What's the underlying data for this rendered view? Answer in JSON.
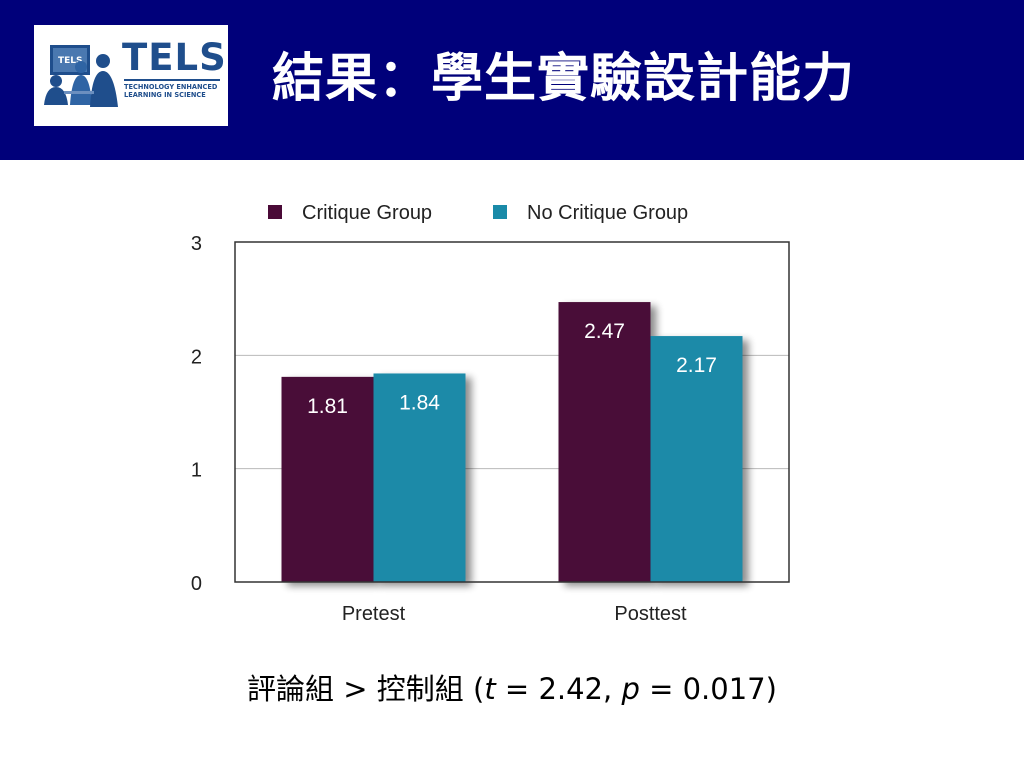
{
  "slide": {
    "title": "結果：學生實驗設計能力",
    "logo": {
      "word": "TELS",
      "screen_word": "TELS",
      "subtitle": "TECHNOLOGY ENHANCED LEARNING IN SCIENCE"
    },
    "caption": {
      "prefix": "評論組 > 控制組 (",
      "t_symbol": "t",
      "t_text": " = 2.42, ",
      "p_symbol": "p",
      "p_text": " = 0.017)"
    }
  },
  "chart_data": {
    "type": "bar",
    "categories": [
      "Pretest",
      "Posttest"
    ],
    "series": [
      {
        "name": "Critique Group",
        "values": [
          1.81,
          2.47
        ],
        "labels": [
          "1.81",
          "2.47"
        ],
        "color": "#4a0a37"
      },
      {
        "name": "No Critique Group",
        "values": [
          1.84,
          2.17
        ],
        "labels": [
          "1.84",
          "2.17"
        ],
        "color": "#1a8aa8"
      }
    ],
    "ylim": [
      0,
      3
    ],
    "yticks": [
      "0",
      "1",
      "2",
      "3"
    ],
    "grid": true,
    "legend": "top",
    "xlabel": "",
    "ylabel": ""
  }
}
